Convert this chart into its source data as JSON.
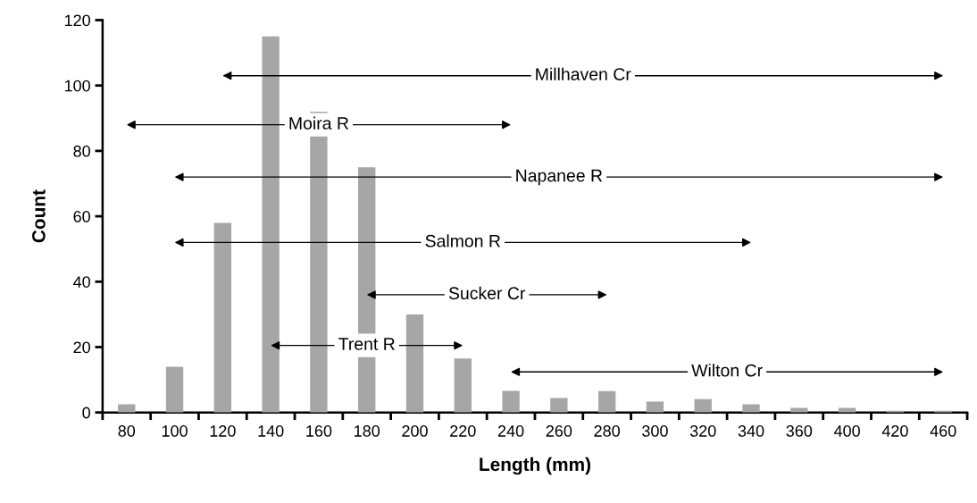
{
  "chart_data": {
    "type": "bar",
    "xlabel": "Length (mm)",
    "ylabel": "Count",
    "categories": [
      "80",
      "100",
      "120",
      "140",
      "160",
      "180",
      "200",
      "220",
      "240",
      "260",
      "280",
      "300",
      "320",
      "340",
      "360",
      "400",
      "420",
      "460"
    ],
    "ylim": [
      0,
      120
    ],
    "yticks": [
      0,
      20,
      40,
      60,
      80,
      100,
      120
    ],
    "grid": false,
    "legend": false,
    "series": [
      {
        "color": "#a6a6a6",
        "values": [
          2.5,
          14,
          58,
          115,
          92,
          75,
          30,
          16.5,
          6.6,
          4.4,
          6.5,
          3.3,
          4.1,
          2.5,
          1.4,
          1.4,
          0.5,
          0.5
        ]
      },
      {
        "type": "line",
        "name": "Millhaven Cr",
        "color": "#000000",
        "marker": "triangle",
        "x": [
          "120",
          "460"
        ],
        "values": [
          103,
          103
        ]
      },
      {
        "type": "line",
        "name": "Moira R",
        "color": "#000000",
        "marker": "triangle",
        "x": [
          "80",
          "240"
        ],
        "values": [
          88,
          88
        ]
      },
      {
        "type": "line",
        "name": "Napanee R",
        "color": "#000000",
        "marker": "triangle",
        "x": [
          "100",
          "460"
        ],
        "values": [
          72,
          72
        ]
      },
      {
        "type": "line",
        "name": "Salmon R",
        "color": "#000000",
        "marker": "triangle",
        "x": [
          "100",
          "340"
        ],
        "values": [
          52,
          52
        ]
      },
      {
        "type": "line",
        "name": "Sucker Cr",
        "color": "#000000",
        "marker": "triangle",
        "x": [
          "180",
          "280"
        ],
        "values": [
          36,
          36
        ]
      },
      {
        "type": "line",
        "name": "Trent R",
        "color": "#000000",
        "marker": "triangle",
        "x": [
          "140",
          "220"
        ],
        "values": [
          20.5,
          20.5
        ]
      },
      {
        "type": "line",
        "name": "Wilton Cr",
        "color": "#000000",
        "marker": "triangle",
        "x": [
          "240",
          "460"
        ],
        "values": [
          12.4,
          12.4
        ]
      }
    ]
  }
}
